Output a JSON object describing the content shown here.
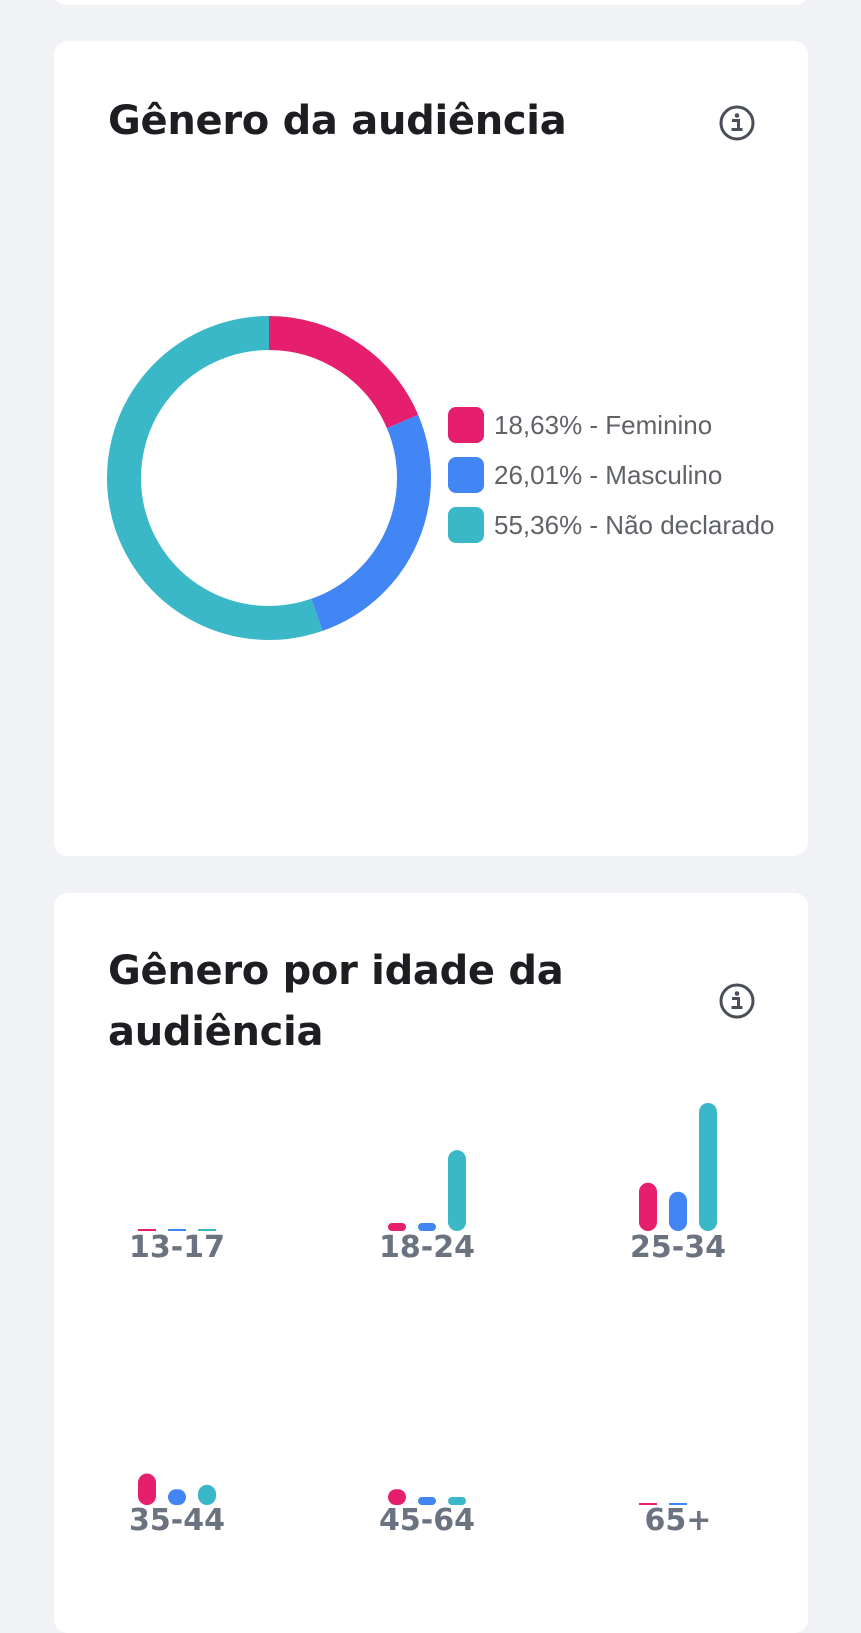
{
  "colors": {
    "feminino": "#e61e6e",
    "masculino": "#4285f4",
    "nao_declarado": "#3bb8c8",
    "icon": "#4a4f57"
  },
  "gender_card": {
    "title": "Gênero da audiência",
    "info_icon": "info-circle-icon"
  },
  "age_card": {
    "title": "Gênero por idade da audiência",
    "info_icon": "info-circle-icon"
  },
  "chart_data": [
    {
      "type": "pie",
      "variant": "donut",
      "title": "Gênero da audiência",
      "legend_placement": "right",
      "slices": [
        {
          "label": "18,63% - Feminino",
          "value": 18.63,
          "color": "#e61e6e"
        },
        {
          "label": "26,01% - Masculino",
          "value": 26.01,
          "color": "#4285f4"
        },
        {
          "label": "55,36% - Não declarado",
          "value": 55.36,
          "color": "#3bb8c8"
        }
      ]
    },
    {
      "type": "bar",
      "title": "Gênero por idade da audiência",
      "grid": false,
      "categories": [
        "13-17",
        "18-24",
        "25-34",
        "35-44",
        "45-64",
        "65+"
      ],
      "series": [
        {
          "key": "feminino",
          "color": "#e61e6e",
          "values": [
            0.1,
            0.6,
            4.3,
            2.8,
            1.4,
            0.1
          ]
        },
        {
          "key": "masculino",
          "color": "#4285f4",
          "values": [
            0.1,
            0.6,
            3.5,
            1.4,
            0.6,
            0.1
          ]
        },
        {
          "key": "nao_declarado",
          "color": "#3bb8c8",
          "values": [
            0.1,
            7.2,
            11.4,
            1.8,
            0.3,
            0
          ]
        }
      ],
      "ylim": [
        0,
        11.4
      ]
    }
  ]
}
